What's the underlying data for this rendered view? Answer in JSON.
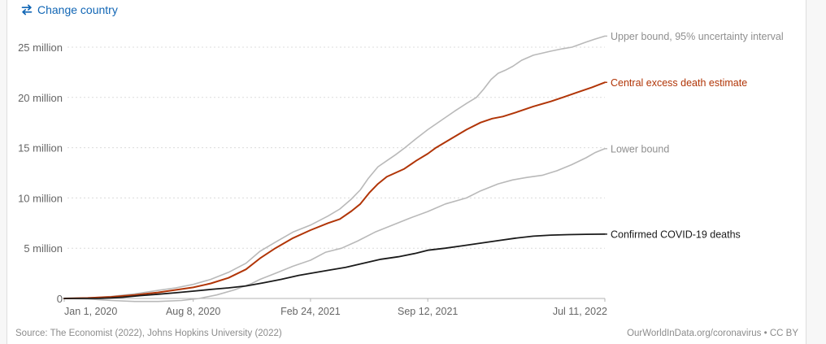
{
  "header": {
    "change_country_label": "Change country",
    "change_country_icon": "swap-arrows-icon",
    "link_color": "#1166b5"
  },
  "footer": {
    "source": "Source: The Economist (2022), Johns Hopkins University (2022)",
    "attribution": "OurWorldInData.org/coronavirus • CC BY"
  },
  "colors": {
    "accent_blue": "#1166b5",
    "central_red": "#b13507",
    "bound_gray": "#b9b9b9",
    "confirmed_black": "#1a1a1a",
    "axis_text": "#666666",
    "gridline": "#dcdcdc",
    "axis_line": "#b3b3b3",
    "muted_label": "#8f8f8f",
    "page_background": "#f7f7f7",
    "card_background": "#ffffff"
  },
  "chart_data": {
    "type": "line",
    "title": "",
    "xlabel": "",
    "ylabel": "",
    "x_total_days": 922,
    "ylim": [
      0,
      26.5
    ],
    "grid": "horizontal-dashed",
    "legend_position": "right-of-line-ends",
    "x_ticks": [
      {
        "day": 0,
        "label": "Jan 1, 2020",
        "align": "start"
      },
      {
        "day": 220,
        "label": "Aug 8, 2020",
        "align": "middle"
      },
      {
        "day": 420,
        "label": "Feb 24, 2021",
        "align": "middle"
      },
      {
        "day": 620,
        "label": "Sep 12, 2021",
        "align": "middle"
      },
      {
        "day": 922,
        "label": "Jul 11, 2022",
        "align": "end"
      }
    ],
    "y_ticks": [
      {
        "value": 0,
        "label": "0"
      },
      {
        "value": 5,
        "label": "5 million"
      },
      {
        "value": 10,
        "label": "10 million"
      },
      {
        "value": 15,
        "label": "15 million"
      },
      {
        "value": 20,
        "label": "20 million"
      },
      {
        "value": 25,
        "label": "25 million"
      }
    ],
    "series": [
      {
        "id": "upper-bound",
        "label": "Upper bound, 95% uncertainty interval",
        "color": "#b9b9b9",
        "label_color": "#8f8f8f",
        "stroke_width": 1.6,
        "points": [
          [
            0,
            0
          ],
          [
            40,
            0.05
          ],
          [
            80,
            0.2
          ],
          [
            120,
            0.45
          ],
          [
            160,
            0.8
          ],
          [
            190,
            1.05
          ],
          [
            220,
            1.4
          ],
          [
            250,
            1.9
          ],
          [
            280,
            2.6
          ],
          [
            310,
            3.5
          ],
          [
            334,
            4.7
          ],
          [
            360,
            5.6
          ],
          [
            390,
            6.6
          ],
          [
            420,
            7.3
          ],
          [
            450,
            8.2
          ],
          [
            470,
            8.9
          ],
          [
            490,
            9.9
          ],
          [
            505,
            10.8
          ],
          [
            518,
            11.9
          ],
          [
            535,
            13.1
          ],
          [
            550,
            13.7
          ],
          [
            565,
            14.3
          ],
          [
            581,
            15.0
          ],
          [
            600,
            15.9
          ],
          [
            620,
            16.8
          ],
          [
            645,
            17.8
          ],
          [
            665,
            18.6
          ],
          [
            686,
            19.4
          ],
          [
            703,
            20.0
          ],
          [
            715,
            20.8
          ],
          [
            728,
            21.8
          ],
          [
            740,
            22.4
          ],
          [
            752,
            22.7
          ],
          [
            765,
            23.1
          ],
          [
            780,
            23.7
          ],
          [
            800,
            24.2
          ],
          [
            830,
            24.6
          ],
          [
            850,
            24.85
          ],
          [
            866,
            25.0
          ],
          [
            890,
            25.5
          ],
          [
            905,
            25.8
          ],
          [
            922,
            26.1
          ]
        ]
      },
      {
        "id": "lower-bound",
        "label": "Lower bound",
        "color": "#b9b9b9",
        "label_color": "#8f8f8f",
        "stroke_width": 1.6,
        "points": [
          [
            0,
            0
          ],
          [
            40,
            -0.05
          ],
          [
            80,
            -0.2
          ],
          [
            120,
            -0.3
          ],
          [
            160,
            -0.3
          ],
          [
            200,
            -0.2
          ],
          [
            230,
            0.0
          ],
          [
            260,
            0.35
          ],
          [
            290,
            0.85
          ],
          [
            320,
            1.5
          ],
          [
            334,
            1.9
          ],
          [
            360,
            2.5
          ],
          [
            390,
            3.2
          ],
          [
            420,
            3.8
          ],
          [
            446,
            4.6
          ],
          [
            473,
            5.0
          ],
          [
            500,
            5.7
          ],
          [
            530,
            6.6
          ],
          [
            560,
            7.3
          ],
          [
            590,
            8.0
          ],
          [
            620,
            8.65
          ],
          [
            650,
            9.4
          ],
          [
            686,
            10.0
          ],
          [
            710,
            10.7
          ],
          [
            740,
            11.4
          ],
          [
            765,
            11.8
          ],
          [
            790,
            12.05
          ],
          [
            815,
            12.25
          ],
          [
            840,
            12.7
          ],
          [
            865,
            13.3
          ],
          [
            890,
            14.0
          ],
          [
            905,
            14.5
          ],
          [
            922,
            14.9
          ]
        ]
      },
      {
        "id": "central-excess-death-estimate",
        "label": "Central excess death estimate",
        "color": "#b13507",
        "label_color": "#b13507",
        "stroke_width": 2,
        "points": [
          [
            0,
            0
          ],
          [
            40,
            0.05
          ],
          [
            80,
            0.15
          ],
          [
            120,
            0.35
          ],
          [
            160,
            0.6
          ],
          [
            190,
            0.85
          ],
          [
            220,
            1.1
          ],
          [
            250,
            1.5
          ],
          [
            280,
            2.05
          ],
          [
            310,
            2.9
          ],
          [
            334,
            4.0
          ],
          [
            360,
            5.0
          ],
          [
            390,
            6.0
          ],
          [
            420,
            6.8
          ],
          [
            450,
            7.5
          ],
          [
            470,
            7.9
          ],
          [
            490,
            8.7
          ],
          [
            505,
            9.4
          ],
          [
            520,
            10.5
          ],
          [
            535,
            11.4
          ],
          [
            550,
            12.1
          ],
          [
            565,
            12.5
          ],
          [
            580,
            12.9
          ],
          [
            600,
            13.7
          ],
          [
            620,
            14.4
          ],
          [
            634,
            15.0
          ],
          [
            660,
            15.9
          ],
          [
            686,
            16.8
          ],
          [
            710,
            17.5
          ],
          [
            730,
            17.9
          ],
          [
            748,
            18.1
          ],
          [
            770,
            18.5
          ],
          [
            800,
            19.1
          ],
          [
            830,
            19.6
          ],
          [
            850,
            20.0
          ],
          [
            875,
            20.5
          ],
          [
            900,
            21.0
          ],
          [
            922,
            21.5
          ]
        ]
      },
      {
        "id": "confirmed-covid-19-deaths",
        "label": "Confirmed COVID-19 deaths",
        "color": "#1a1a1a",
        "label_color": "#1a1a1a",
        "stroke_width": 1.8,
        "points": [
          [
            0,
            0
          ],
          [
            60,
            0.01
          ],
          [
            80,
            0.05
          ],
          [
            100,
            0.12
          ],
          [
            130,
            0.28
          ],
          [
            160,
            0.42
          ],
          [
            190,
            0.57
          ],
          [
            220,
            0.73
          ],
          [
            250,
            0.9
          ],
          [
            280,
            1.05
          ],
          [
            310,
            1.25
          ],
          [
            340,
            1.55
          ],
          [
            370,
            1.9
          ],
          [
            400,
            2.3
          ],
          [
            420,
            2.5
          ],
          [
            450,
            2.8
          ],
          [
            480,
            3.1
          ],
          [
            510,
            3.5
          ],
          [
            540,
            3.9
          ],
          [
            570,
            4.15
          ],
          [
            600,
            4.5
          ],
          [
            620,
            4.8
          ],
          [
            650,
            5.0
          ],
          [
            680,
            5.25
          ],
          [
            710,
            5.5
          ],
          [
            740,
            5.75
          ],
          [
            770,
            6.0
          ],
          [
            800,
            6.2
          ],
          [
            830,
            6.3
          ],
          [
            860,
            6.35
          ],
          [
            890,
            6.38
          ],
          [
            922,
            6.4
          ]
        ]
      }
    ]
  }
}
